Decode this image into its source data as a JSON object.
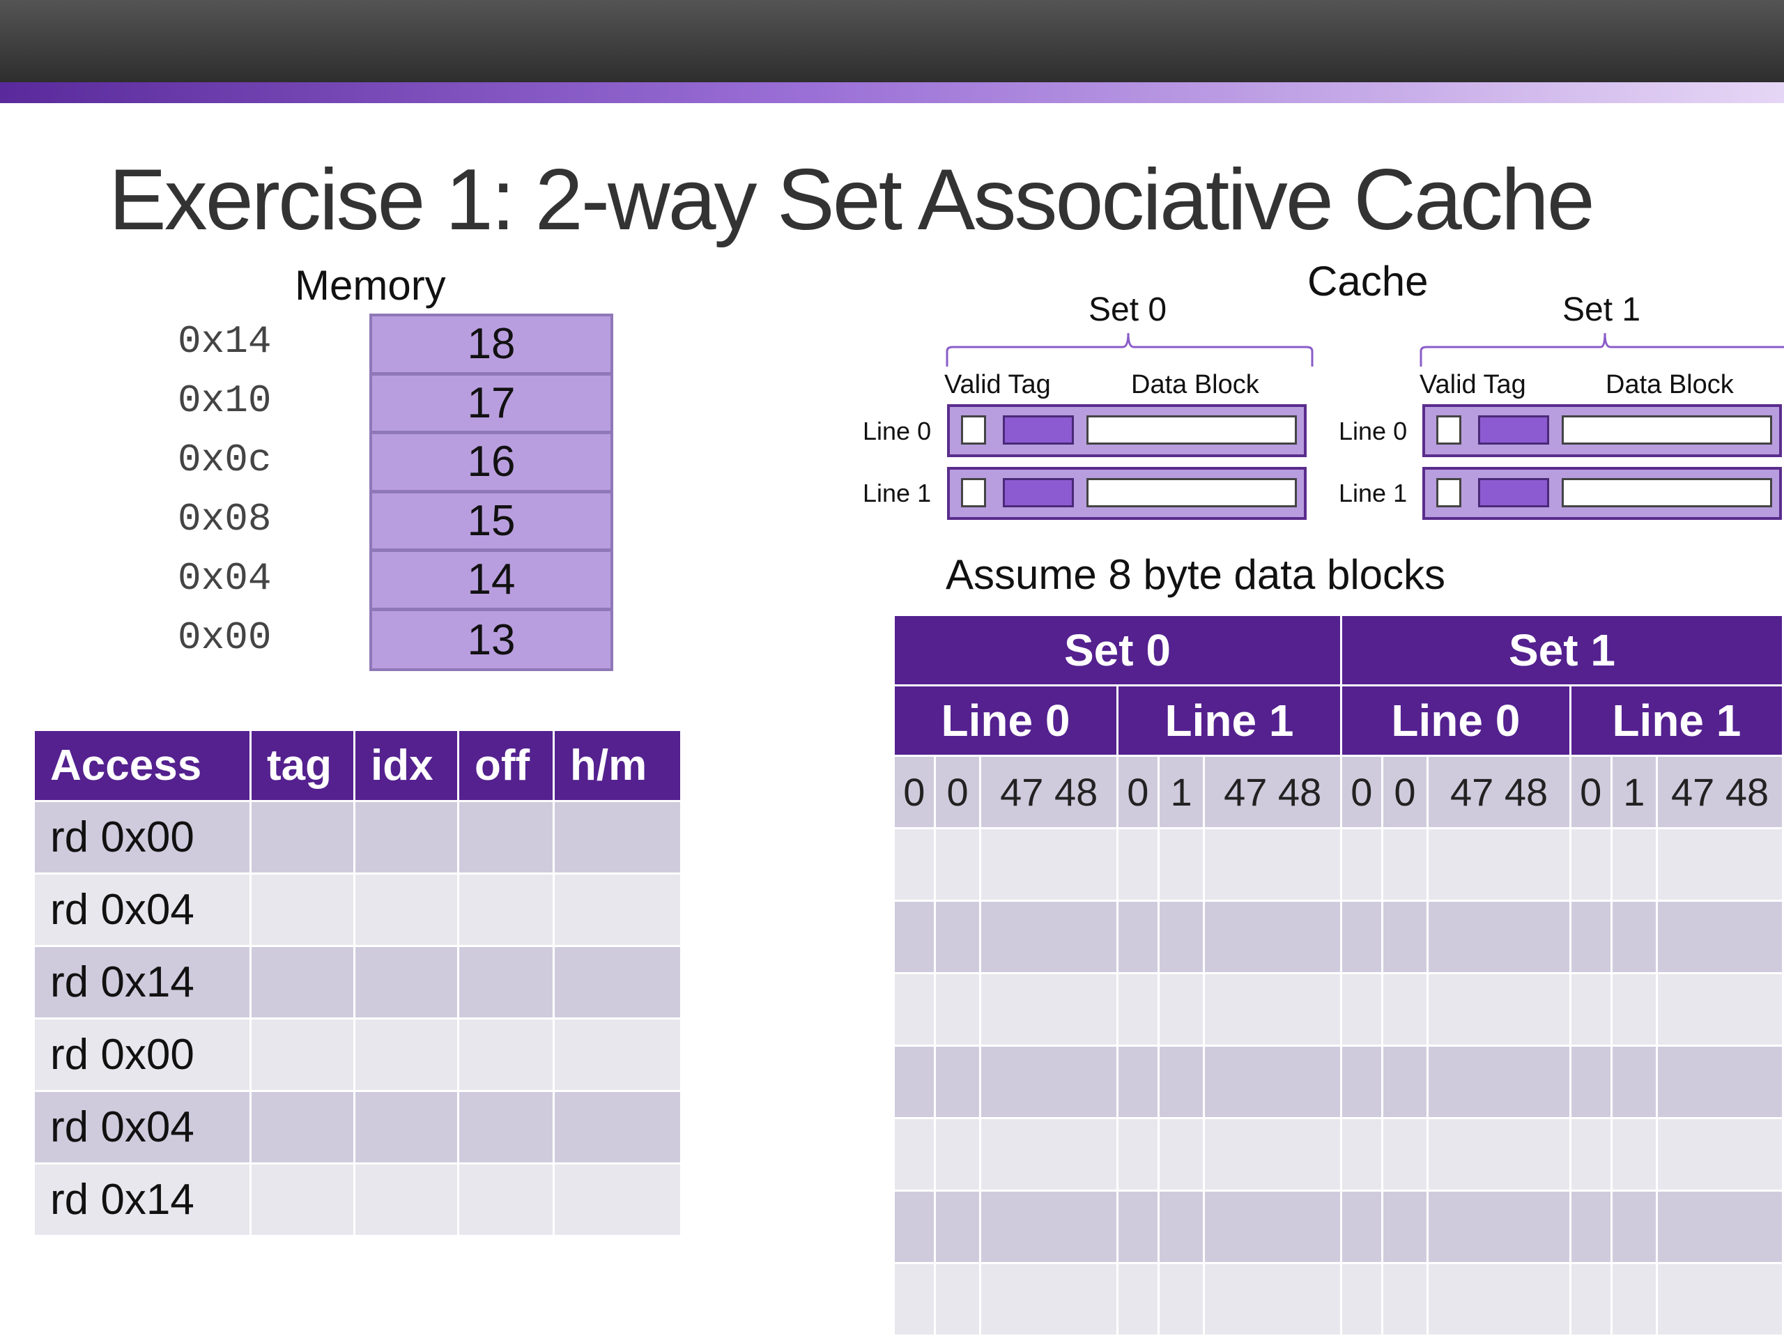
{
  "title": "Exercise 1: 2-way Set Associative Cache",
  "memory": {
    "label": "Memory",
    "rows": [
      {
        "addr": "0x14",
        "value": "18"
      },
      {
        "addr": "0x10",
        "value": "17"
      },
      {
        "addr": "0x0c",
        "value": "16"
      },
      {
        "addr": "0x08",
        "value": "15"
      },
      {
        "addr": "0x04",
        "value": "14"
      },
      {
        "addr": "0x00",
        "value": "13"
      }
    ]
  },
  "cache": {
    "label": "Cache",
    "set0_label": "Set 0",
    "set1_label": "Set 1",
    "valid_tag_label": "Valid Tag",
    "data_block_label": "Data Block",
    "line0_label": "Line 0",
    "line1_label": "Line 1",
    "note": "Assume 8 byte data blocks"
  },
  "access_table": {
    "headers": [
      "Access",
      "tag",
      "idx",
      "off",
      "h/m"
    ],
    "rows": [
      "rd 0x00",
      "rd 0x04",
      "rd 0x14",
      "rd 0x00",
      "rd 0x04",
      "rd 0x14"
    ]
  },
  "cache_table": {
    "sets": [
      "Set 0",
      "Set 1"
    ],
    "lines": [
      "Line 0",
      "Line 1",
      "Line 0",
      "Line 1"
    ],
    "first_row": [
      {
        "v": "0",
        "t": "0",
        "d": "47 48"
      },
      {
        "v": "0",
        "t": "1",
        "d": "47 48"
      },
      {
        "v": "0",
        "t": "0",
        "d": "47 48"
      },
      {
        "v": "0",
        "t": "1",
        "d": "47 48"
      }
    ]
  },
  "colors": {
    "header_purple": "#54218f",
    "memory_fill": "#b99edf",
    "row_dark": "#cfcbdd",
    "row_light": "#e8e7ed"
  }
}
